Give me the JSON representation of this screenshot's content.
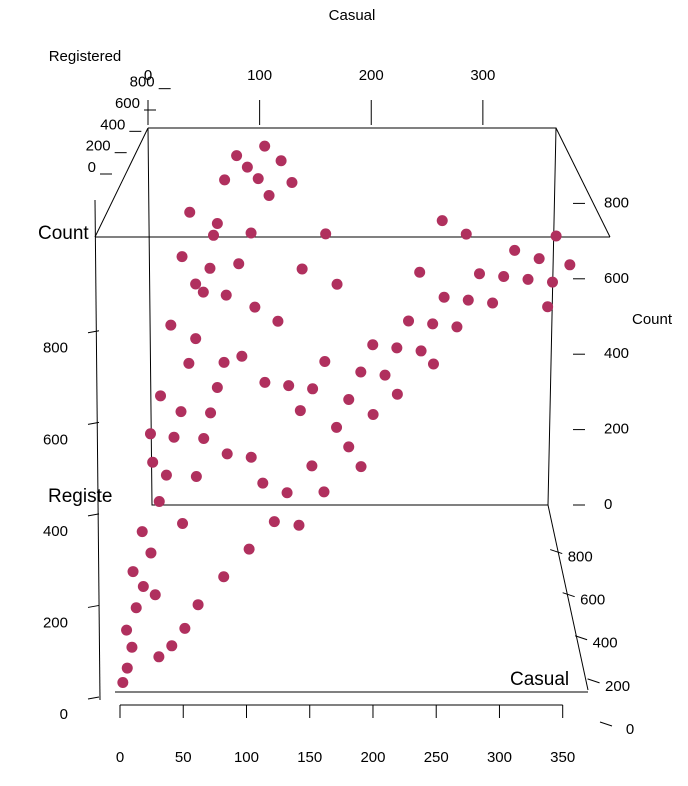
{
  "chart_data": {
    "type": "scatter3d",
    "x_label": "Casual",
    "y_label": "Registered",
    "z_label": "Count",
    "xlim": [
      0,
      370
    ],
    "ylim": [
      0,
      900
    ],
    "zlim": [
      0,
      1000
    ],
    "xticks": [
      0,
      100,
      200,
      300
    ],
    "yticks": [
      0,
      200,
      400,
      600,
      800
    ],
    "zticks": [
      0,
      200,
      400,
      600,
      800
    ],
    "front_axes": {
      "x_label": "Casual",
      "y_label": "Registe",
      "z_label": "Count",
      "xticks": [
        0,
        50,
        100,
        150,
        200,
        250,
        300,
        350
      ],
      "yticks": [
        0,
        200,
        400,
        600,
        800
      ],
      "y2ticks": [
        0,
        200,
        400,
        600,
        800
      ]
    },
    "points": {
      "color": "#b0305e",
      "x": [
        2,
        5,
        8,
        3,
        10,
        15,
        6,
        20,
        12,
        25,
        30,
        18,
        35,
        40,
        22,
        45,
        50,
        28,
        55,
        60,
        35,
        65,
        40,
        70,
        80,
        90,
        100,
        110,
        95,
        85,
        75,
        100,
        120,
        90,
        70,
        110,
        130,
        60,
        80,
        100,
        140,
        150,
        160,
        170,
        180,
        190,
        200,
        210,
        220,
        230,
        240,
        250,
        260,
        270,
        280,
        290,
        300,
        310,
        320,
        330,
        340,
        350,
        355,
        345,
        365,
        150,
        160,
        130,
        120,
        100,
        80,
        60,
        50,
        40,
        30,
        180,
        200,
        220,
        250,
        190,
        140,
        110,
        45,
        55,
        65,
        75,
        48,
        62,
        105,
        120,
        130,
        15,
        25,
        140,
        160,
        170,
        240,
        280,
        260
      ],
      "y": [
        10,
        30,
        60,
        90,
        120,
        150,
        180,
        200,
        240,
        280,
        320,
        350,
        380,
        420,
        460,
        500,
        540,
        580,
        620,
        660,
        700,
        740,
        780,
        820,
        860,
        830,
        800,
        760,
        700,
        650,
        600,
        560,
        520,
        480,
        440,
        420,
        400,
        360,
        320,
        300,
        350,
        380,
        420,
        300,
        340,
        380,
        420,
        360,
        400,
        440,
        380,
        420,
        460,
        400,
        440,
        480,
        420,
        460,
        500,
        440,
        470,
        420,
        500,
        380,
        440,
        250,
        200,
        220,
        180,
        150,
        120,
        90,
        60,
        40,
        30,
        260,
        300,
        320,
        350,
        220,
        160,
        250,
        230,
        300,
        400,
        480,
        640,
        720,
        860,
        820,
        770,
        400,
        130,
        600,
        650,
        550,
        520,
        560,
        600
      ],
      "z": [
        12,
        35,
        68,
        93,
        130,
        165,
        186,
        220,
        252,
        305,
        350,
        368,
        415,
        460,
        482,
        545,
        590,
        608,
        675,
        720,
        735,
        805,
        820,
        890,
        940,
        920,
        900,
        870,
        795,
        735,
        675,
        660,
        640,
        570,
        510,
        530,
        530,
        420,
        400,
        400,
        490,
        530,
        580,
        470,
        520,
        570,
        620,
        570,
        620,
        670,
        620,
        670,
        720,
        670,
        720,
        770,
        720,
        770,
        820,
        770,
        810,
        770,
        855,
        725,
        805,
        400,
        360,
        350,
        300,
        250,
        200,
        150,
        110,
        80,
        60,
        440,
        500,
        540,
        600,
        410,
        300,
        360,
        275,
        355,
        465,
        555,
        688,
        782,
        965,
        940,
        900,
        415,
        155,
        740,
        810,
        720,
        760,
        840,
        860
      ]
    }
  }
}
